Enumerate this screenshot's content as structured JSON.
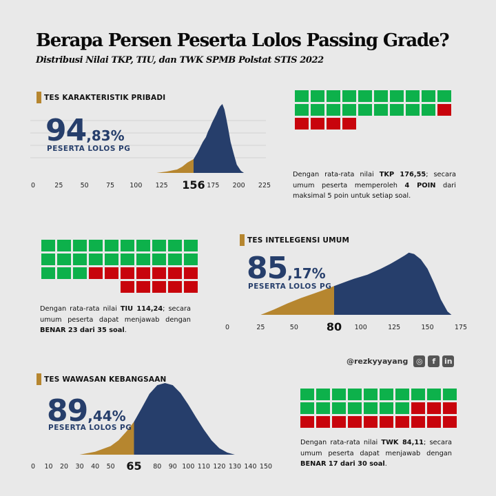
{
  "header": {
    "title": "Berapa Persen Peserta Lolos Passing Grade?",
    "subtitle": "Distribusi Nilai TKP, TIU, dan TWK SPMB Polstat STIS 2022"
  },
  "colors": {
    "navy": "#263e6b",
    "gold": "#b6862f",
    "green": "#0db14b",
    "red": "#c8040c"
  },
  "sections": {
    "tkp": {
      "label": "TES KARAKTERISTIK PRIBADI",
      "pct_int": "94",
      "pct_dec": ",83%",
      "pass_label": "PESERTA LOLOS PG",
      "desc": {
        "t1": "Dengan rata-rata nilai ",
        "b1": "TKP 176,55",
        "t2": "; secara umum peserta memperoleh ",
        "b2": "4 POIN",
        "t3": " dari maksimal 5 poin untuk setiap soal."
      }
    },
    "tiu": {
      "label": "TES INTELEGENSI UMUM",
      "pct_int": "85",
      "pct_dec": ",17%",
      "pass_label": "PESERTA LOLOS PG",
      "desc": {
        "t1": "Dengan rata-rata nilai ",
        "b1": "TIU 114,24",
        "t2": "; secara umum peserta dapat menjawab dengan ",
        "b2": "BENAR 23 dari 35 soal",
        "t3": "."
      }
    },
    "twk": {
      "label": "TES WAWASAN KEBANGSAAN",
      "pct_int": "89",
      "pct_dec": ",44%",
      "pass_label": "PESERTA LOLOS PG",
      "desc": {
        "t1": "Dengan rata-rata nilai ",
        "b1": "TWK 84,11",
        "t2": "; secara umum peserta dapat menjawab dengan ",
        "b2": "BENAR 17 dari 30 soal",
        "t3": "."
      }
    }
  },
  "social": {
    "handle": "@rezkyyayang",
    "icons": [
      "instagram-icon",
      "facebook-icon",
      "linkedin-icon"
    ],
    "labels": [
      "◎",
      "f",
      "in"
    ]
  },
  "chart_data": [
    {
      "type": "area",
      "id": "tkp",
      "title": "TES KARAKTERISTIK PRIBADI",
      "passing_grade": 156,
      "pass_percent": 94.83,
      "xlim": [
        0,
        225
      ],
      "ticks": [
        0,
        25,
        50,
        75,
        100,
        125,
        150,
        175,
        200,
        225
      ],
      "hidden_ticks": [
        150
      ],
      "x": [
        120,
        130,
        140,
        145,
        150,
        156,
        160,
        165,
        168,
        170,
        172,
        174,
        176,
        178,
        180,
        182,
        184,
        186,
        188,
        190,
        192,
        195,
        198,
        202,
        205
      ],
      "density": [
        0,
        0.02,
        0.05,
        0.09,
        0.15,
        0.2,
        0.3,
        0.45,
        0.52,
        0.6,
        0.66,
        0.73,
        0.79,
        0.85,
        0.92,
        0.97,
        1.0,
        0.92,
        0.78,
        0.62,
        0.45,
        0.28,
        0.12,
        0.03,
        0
      ]
    },
    {
      "type": "area",
      "id": "tiu",
      "title": "TES INTELEGENSI UMUM",
      "passing_grade": 80,
      "pass_percent": 85.17,
      "xlim": [
        0,
        175
      ],
      "ticks": [
        0,
        25,
        50,
        75,
        100,
        125,
        150,
        175
      ],
      "hidden_ticks": [
        75
      ],
      "x": [
        25,
        35,
        45,
        55,
        65,
        72,
        80,
        88,
        95,
        105,
        115,
        122,
        128,
        133,
        136,
        140,
        145,
        150,
        155,
        160,
        165,
        168
      ],
      "density": [
        0,
        0.08,
        0.17,
        0.25,
        0.32,
        0.37,
        0.43,
        0.49,
        0.54,
        0.6,
        0.69,
        0.76,
        0.83,
        0.89,
        0.93,
        0.91,
        0.83,
        0.69,
        0.47,
        0.23,
        0.05,
        0
      ]
    },
    {
      "type": "area",
      "id": "twk",
      "title": "TES WAWASAN KEBANGSAAN",
      "passing_grade": 65,
      "pass_percent": 89.44,
      "xlim": [
        0,
        150
      ],
      "ticks": [
        0,
        10,
        20,
        30,
        40,
        50,
        60,
        70,
        80,
        90,
        100,
        110,
        120,
        130,
        140,
        150
      ],
      "hidden_ticks": [
        60,
        70
      ],
      "x": [
        30,
        40,
        50,
        55,
        60,
        65,
        70,
        75,
        80,
        85,
        90,
        95,
        100,
        105,
        110,
        115,
        120,
        125,
        130
      ],
      "density": [
        0,
        0.04,
        0.12,
        0.2,
        0.32,
        0.46,
        0.65,
        0.85,
        0.97,
        1.0,
        0.97,
        0.86,
        0.7,
        0.52,
        0.35,
        0.2,
        0.09,
        0.03,
        0
      ]
    },
    {
      "type": "waffle",
      "id": "tkp-waffle",
      "description": "TKP 4 of 5 points per question",
      "green": 19,
      "red": 5,
      "columns": 10
    },
    {
      "type": "waffle",
      "id": "tiu-waffle",
      "description": "TIU 23 of 35 correct",
      "green": 23,
      "red": 12,
      "columns": 10
    },
    {
      "type": "waffle",
      "id": "twk-waffle",
      "description": "TWK 17 of 30 correct",
      "green": 17,
      "red": 13,
      "columns": 10
    }
  ]
}
